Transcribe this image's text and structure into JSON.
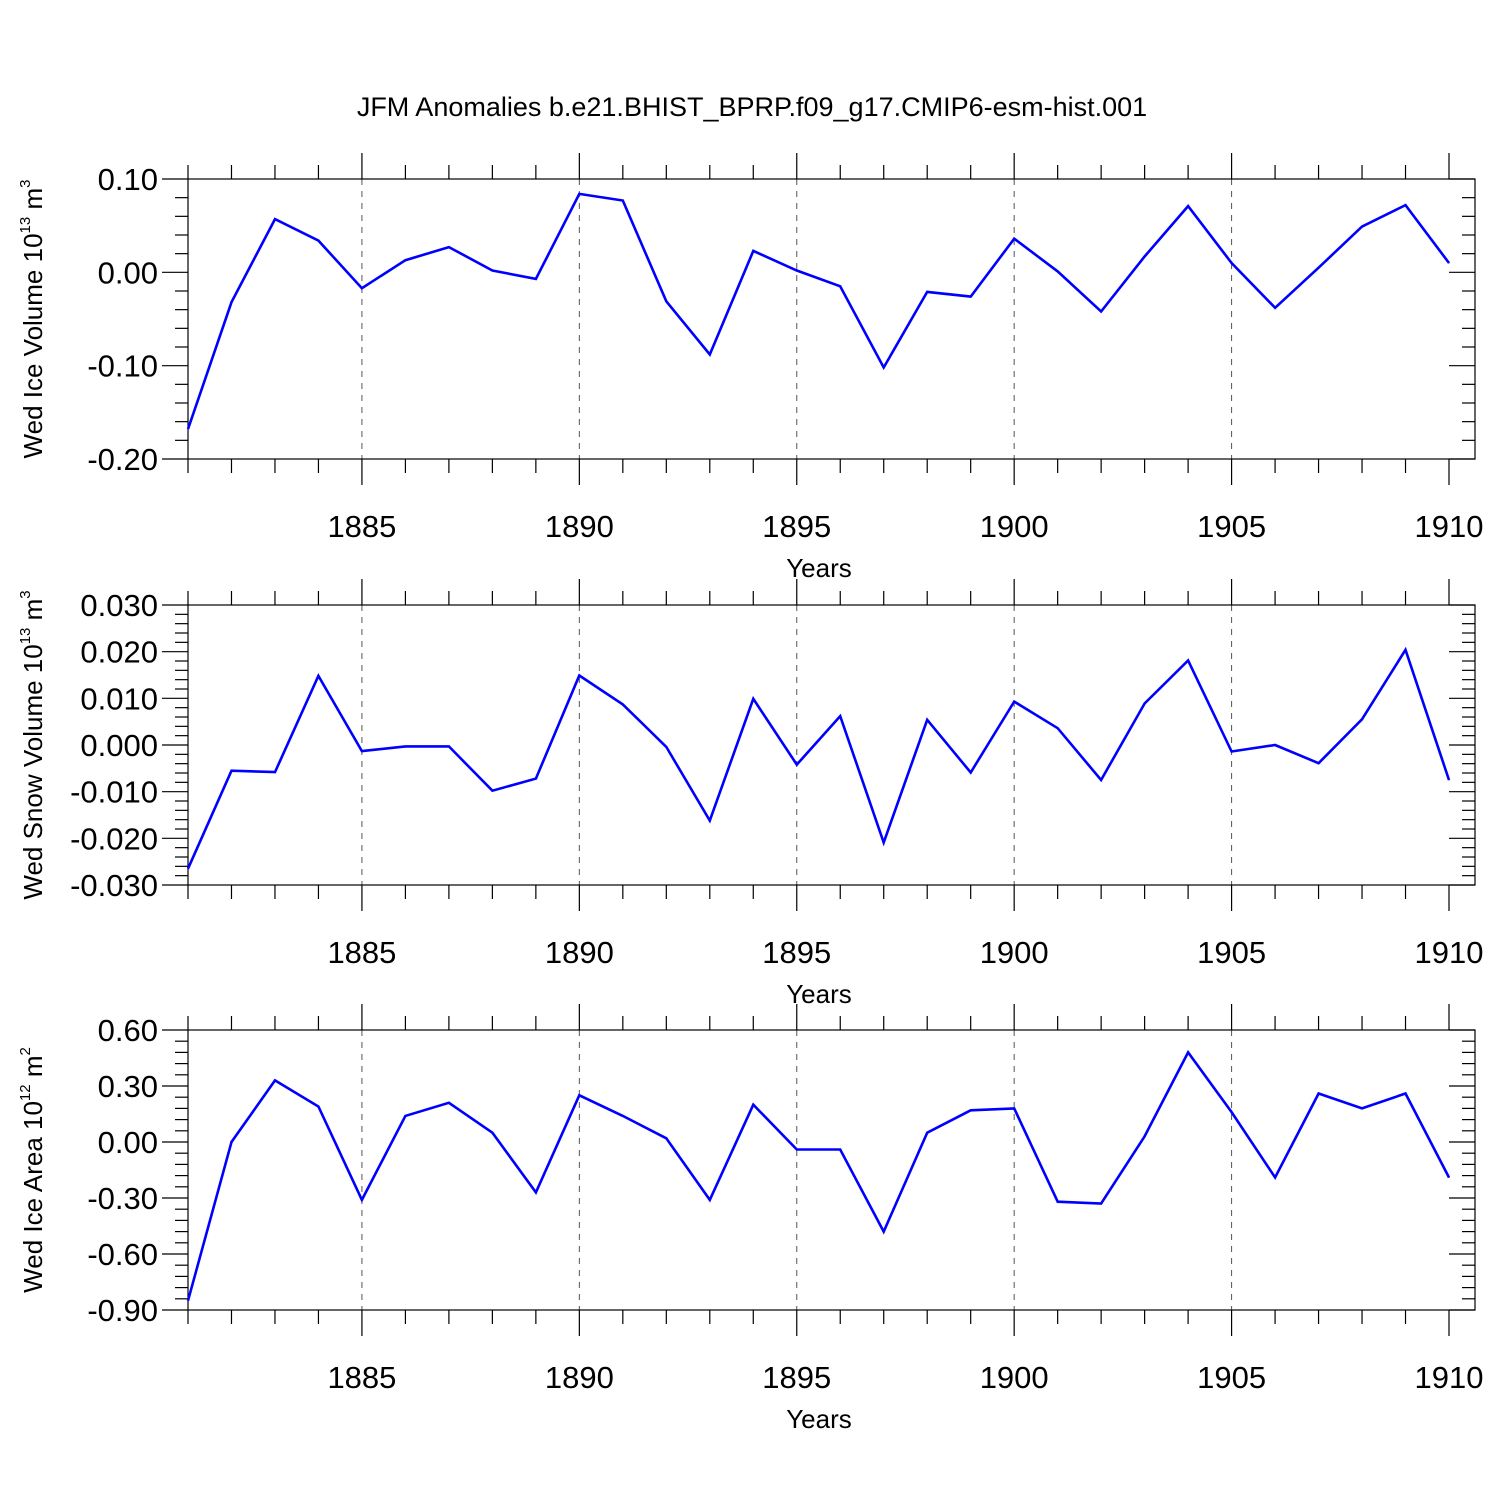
{
  "title": "JFM Anomalies b.e21.BHIST_BPRP.f09_g17.CMIP6-esm-hist.001",
  "series_color": "#0000ff",
  "chart_data": [
    {
      "type": "line",
      "ylabel_main": "Wed Ice Volume 10",
      "ylabel_exp": "13",
      "ylabel_unit": " m",
      "ylabel_unit_exp": "3",
      "xlabel": "Years",
      "xlim": [
        1881,
        1910
      ],
      "ylim": [
        -0.2,
        0.1
      ],
      "yticks": [
        -0.2,
        -0.1,
        0.0,
        0.1
      ],
      "ytick_labels": [
        "-0.20",
        "-0.10",
        "0.00",
        "0.10"
      ],
      "xticks": [
        1885,
        1890,
        1895,
        1900,
        1905,
        1910
      ],
      "xtick_labels": [
        "1885",
        "1890",
        "1895",
        "1900",
        "1905",
        "1910"
      ],
      "x": [
        1881,
        1882,
        1883,
        1884,
        1885,
        1886,
        1887,
        1888,
        1889,
        1890,
        1891,
        1892,
        1893,
        1894,
        1895,
        1896,
        1897,
        1898,
        1899,
        1900,
        1901,
        1902,
        1903,
        1904,
        1905,
        1906,
        1907,
        1908,
        1909,
        1910
      ],
      "values": [
        -0.168,
        -0.032,
        0.057,
        0.034,
        -0.017,
        0.013,
        0.027,
        0.002,
        -0.007,
        0.084,
        0.077,
        -0.031,
        -0.088,
        0.023,
        0.002,
        -0.015,
        -0.102,
        -0.021,
        -0.026,
        0.036,
        0.001,
        -0.042,
        0.017,
        0.071,
        0.01,
        -0.038,
        0.005,
        0.049,
        0.072,
        0.01
      ]
    },
    {
      "type": "line",
      "ylabel_main": "Wed Snow Volume 10",
      "ylabel_exp": "13",
      "ylabel_unit": " m",
      "ylabel_unit_exp": "3",
      "xlabel": "Years",
      "xlim": [
        1881,
        1910
      ],
      "ylim": [
        -0.03,
        0.03
      ],
      "yticks": [
        -0.03,
        -0.02,
        -0.01,
        0.0,
        0.01,
        0.02,
        0.03
      ],
      "ytick_labels": [
        "-0.030",
        "-0.020",
        "-0.010",
        "0.000",
        "0.010",
        "0.020",
        "0.030"
      ],
      "xticks": [
        1885,
        1890,
        1895,
        1900,
        1905,
        1910
      ],
      "xtick_labels": [
        "1885",
        "1890",
        "1895",
        "1900",
        "1905",
        "1910"
      ],
      "x": [
        1881,
        1882,
        1883,
        1884,
        1885,
        1886,
        1887,
        1888,
        1889,
        1890,
        1891,
        1892,
        1893,
        1894,
        1895,
        1896,
        1897,
        1898,
        1899,
        1900,
        1901,
        1902,
        1903,
        1904,
        1905,
        1906,
        1907,
        1908,
        1909,
        1910
      ],
      "values": [
        -0.0265,
        -0.0055,
        -0.0058,
        0.0148,
        -0.0013,
        -0.0003,
        -0.0003,
        -0.0098,
        -0.0072,
        0.0149,
        0.0087,
        -0.0004,
        -0.0162,
        0.0099,
        -0.0042,
        0.0062,
        -0.0209,
        0.0054,
        -0.0059,
        0.0093,
        0.0036,
        -0.0075,
        0.0089,
        0.0181,
        -0.0014,
        0.0,
        -0.0039,
        0.0055,
        0.0204,
        -0.0075
      ]
    },
    {
      "type": "line",
      "ylabel_main": "Wed Ice Area 10",
      "ylabel_exp": "12",
      "ylabel_unit": " m",
      "ylabel_unit_exp": "2",
      "xlabel": "Years",
      "xlim": [
        1881,
        1910
      ],
      "ylim": [
        -0.9,
        0.6
      ],
      "yticks": [
        -0.9,
        -0.6,
        -0.3,
        0.0,
        0.3,
        0.6
      ],
      "ytick_labels": [
        "-0.90",
        "-0.60",
        "-0.30",
        "0.00",
        "0.30",
        "0.60"
      ],
      "xticks": [
        1885,
        1890,
        1895,
        1900,
        1905,
        1910
      ],
      "xtick_labels": [
        "1885",
        "1890",
        "1895",
        "1900",
        "1905",
        "1910"
      ],
      "x": [
        1881,
        1882,
        1883,
        1884,
        1885,
        1886,
        1887,
        1888,
        1889,
        1890,
        1891,
        1892,
        1893,
        1894,
        1895,
        1896,
        1897,
        1898,
        1899,
        1900,
        1901,
        1902,
        1903,
        1904,
        1905,
        1906,
        1907,
        1908,
        1909,
        1910
      ],
      "values": [
        -0.85,
        0.0,
        0.33,
        0.19,
        -0.31,
        0.14,
        0.21,
        0.05,
        -0.27,
        0.25,
        0.14,
        0.02,
        -0.31,
        0.2,
        -0.04,
        -0.04,
        -0.48,
        0.05,
        0.17,
        0.18,
        -0.32,
        -0.33,
        0.03,
        0.48,
        0.16,
        -0.19,
        0.26,
        0.18,
        0.26,
        -0.19
      ]
    }
  ]
}
